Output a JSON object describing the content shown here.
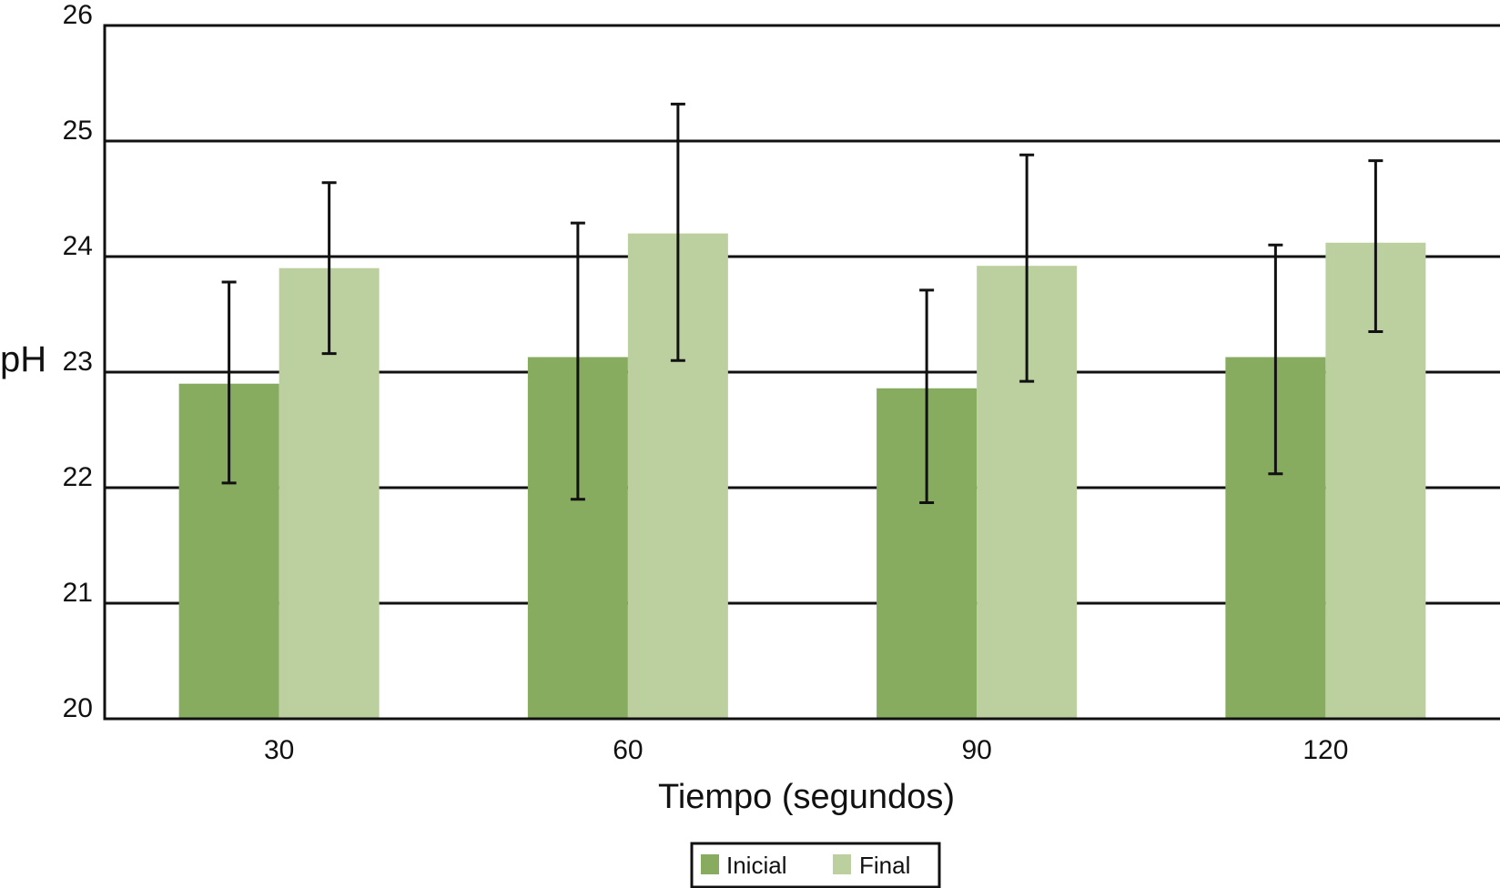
{
  "chart_data": {
    "type": "bar",
    "title": "",
    "xlabel": "Tiempo (segundos)",
    "ylabel": "pH",
    "categories": [
      "30",
      "60",
      "90",
      "120"
    ],
    "ylim": [
      20,
      26
    ],
    "yticks": [
      "20",
      "21",
      "22",
      "23",
      "24",
      "25",
      "26"
    ],
    "grid": true,
    "legend_position": "bottom-center",
    "series": [
      {
        "name": "Inicial",
        "color": "#87ab5f",
        "values": [
          22.9,
          23.13,
          22.86,
          23.13
        ],
        "error_low": [
          22.04,
          21.9,
          21.87,
          22.12
        ],
        "error_high": [
          23.78,
          24.29,
          23.71,
          24.1
        ]
      },
      {
        "name": "Final",
        "color": "#bcd09f",
        "values": [
          23.9,
          24.2,
          23.92,
          24.12
        ],
        "error_low": [
          23.16,
          23.1,
          22.92,
          23.35
        ],
        "error_high": [
          24.64,
          25.32,
          24.88,
          24.83
        ]
      }
    ]
  }
}
